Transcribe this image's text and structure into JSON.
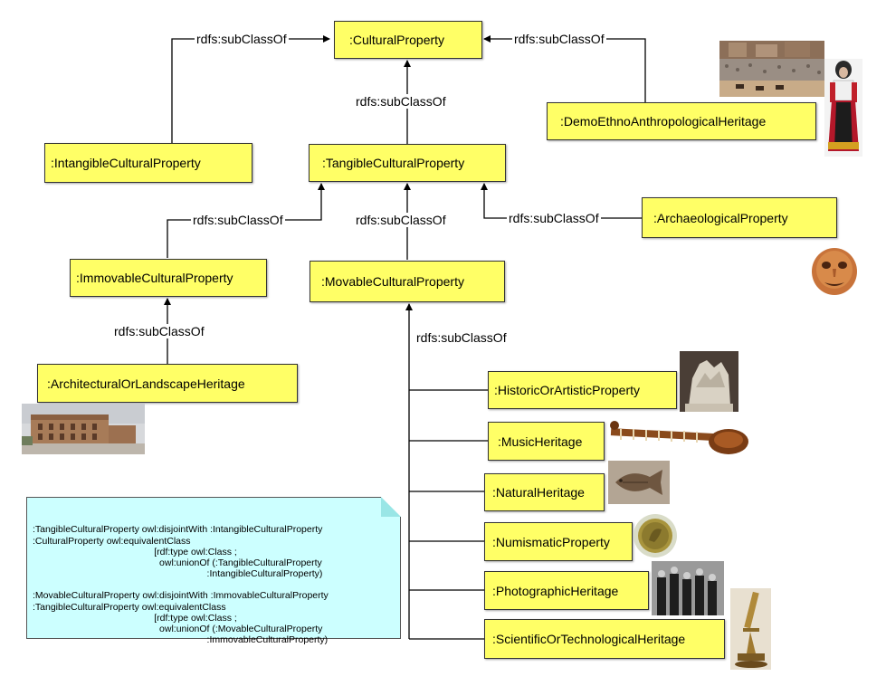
{
  "nodes": {
    "cultural_property": ":CulturalProperty",
    "intangible": ":IntangibleCulturalProperty",
    "tangible": ":TangibleCulturalProperty",
    "demo_ethno": ":DemoEthnoAnthropologicalHeritage",
    "immovable": ":ImmovableCulturalProperty",
    "movable": ":MovableCulturalProperty",
    "archaeological": ":ArchaeologicalProperty",
    "architectural": ":ArchitecturalOrLandscapeHeritage",
    "historic": ":HistoricOrArtisticProperty",
    "music": ":MusicHeritage",
    "natural": ":NaturalHeritage",
    "numismatic": ":NumismaticProperty",
    "photographic": ":PhotographicHeritage",
    "scientific": ":ScientificOrTechnologicalHeritage"
  },
  "edge_label": "rdfs:subClassOf",
  "note_lines": [
    ":TangibleCulturalProperty owl:disjointWith :IntangibleCulturalProperty",
    ":CulturalProperty owl:equivalentClass",
    "                                              [rdf:type owl:Class ;",
    "                                                owl:unionOf (:TangibleCulturalProperty",
    "                                                                  :IntangibleCulturalProperty)",
    "",
    ":MovableCulturalProperty owl:disjointWith :ImmovableCulturalProperty",
    ":TangibleCulturalProperty owl:equivalentClass",
    "                                              [rdf:type owl:Class ;",
    "                                                owl:unionOf (:MovableCulturalProperty",
    "                                                                  :ImmovableCulturalProperty)"
  ]
}
